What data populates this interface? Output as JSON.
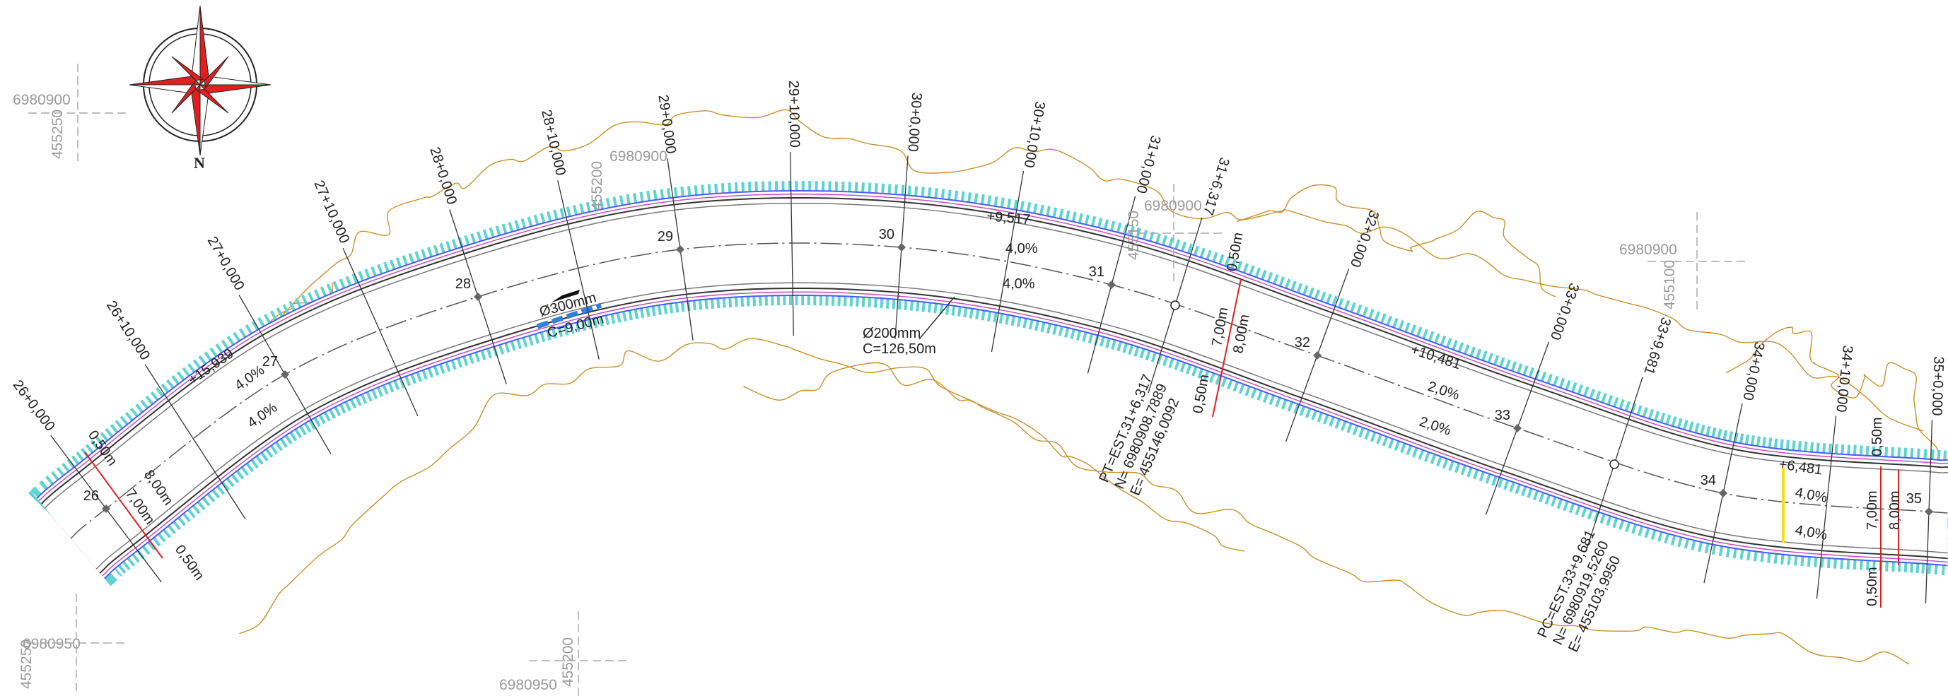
{
  "grid_labels": [
    "6980900",
    "455250",
    "6980900",
    "455200",
    "6980900",
    "455150",
    "6980900",
    "455100",
    "6980950",
    "455250",
    "6980950",
    "455200"
  ],
  "north": "N",
  "stations": [
    "26+0,000",
    "26+10,000",
    "27+0,000",
    "27+10,000",
    "28+0,000",
    "28+10,000",
    "29+0,000",
    "29+10,000",
    "30+0,000",
    "30+10,000",
    "31+0,000",
    "31+6,317",
    "32+0,000",
    "33+0,000",
    "33+9,681",
    "34+0,000",
    "34+10,000",
    "35+0,000"
  ],
  "station_numbers": [
    "26",
    "27",
    "28",
    "29",
    "30",
    "31",
    "32",
    "33",
    "34",
    "35"
  ],
  "widths": [
    "0,50m",
    "8,00m",
    "7,00m",
    "0,50m",
    "0,50m",
    "7,00m",
    "8,00m",
    "0,50m",
    "0,50m",
    "7,00m",
    "8,00m",
    "0,50m"
  ],
  "slopes": [
    "4,0%",
    "4,0%",
    "4,0%",
    "4,0%",
    "2,0%",
    "2,0%",
    "4,0%",
    "4,0%"
  ],
  "superelevations": [
    "+15,939",
    "+9,517",
    "+10,481",
    "+6,481"
  ],
  "pipes": [
    {
      "diameter": "Ø300mm",
      "length": "C=9,00m"
    },
    {
      "diameter": "Ø200mm",
      "length": "C=126,50m"
    }
  ],
  "curve_points": [
    [
      "PT=EST.31+6,317",
      "N= 6980908,7889",
      "E= 455146,0092"
    ],
    [
      "PC=EST.33+9,681",
      "N= 6980919,5260",
      "E= 455103,9950"
    ]
  ]
}
